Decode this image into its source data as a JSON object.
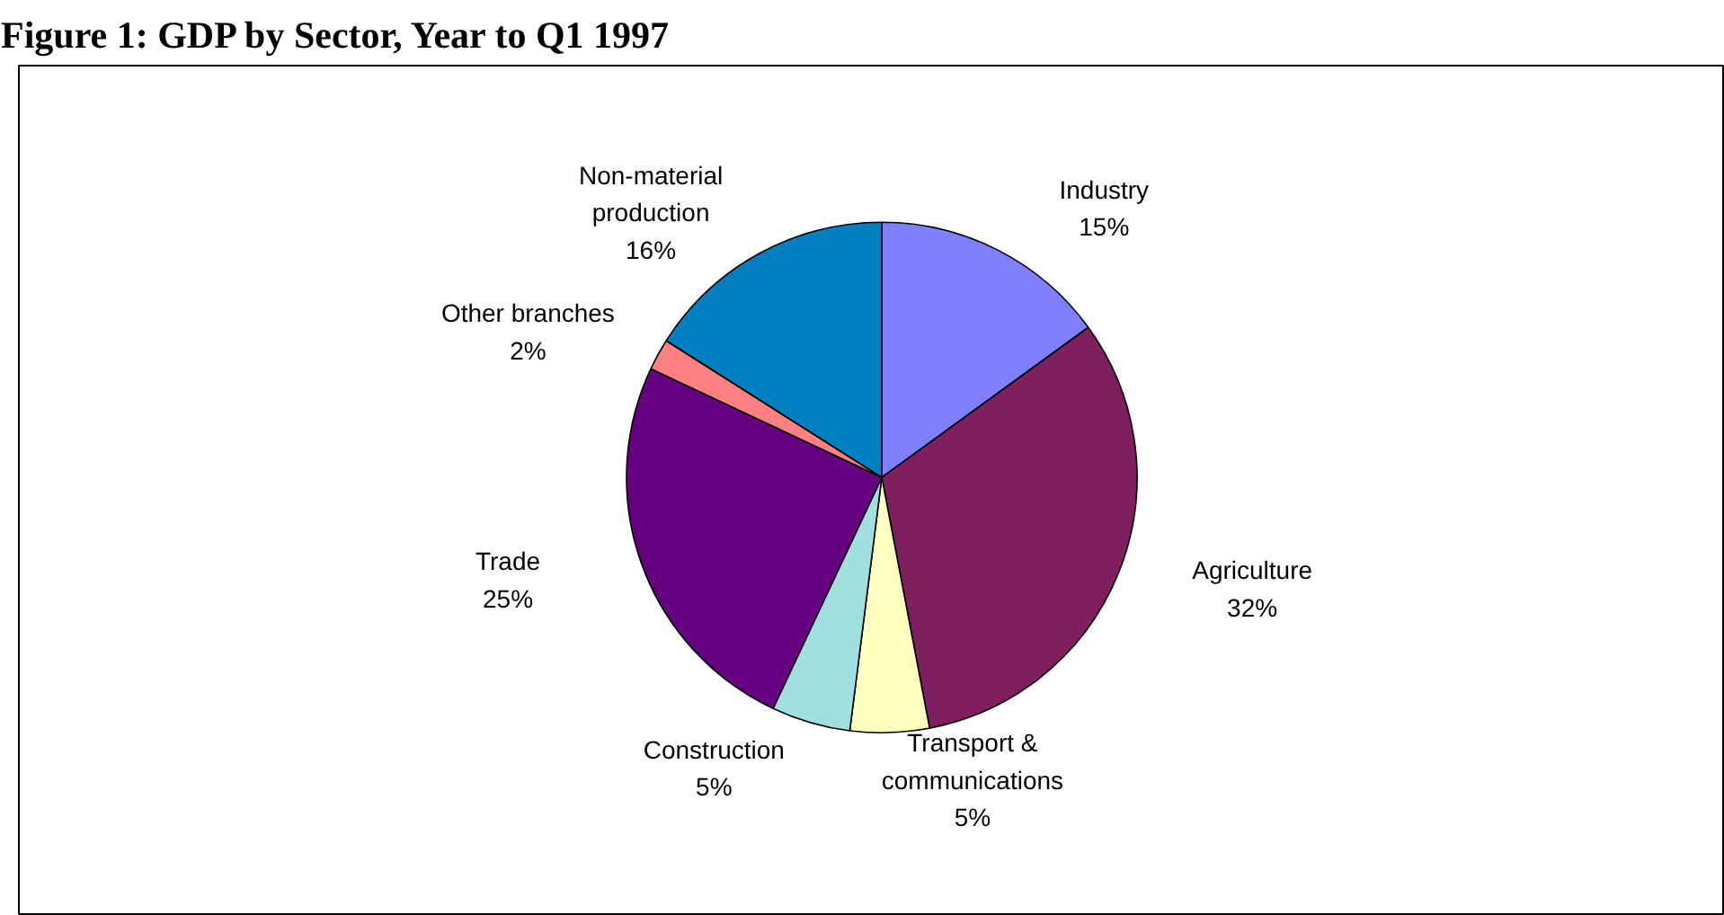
{
  "chart_data": {
    "type": "pie",
    "title": "Figure 1: GDP by Sector, Year to Q1 1997",
    "categories": [
      "Industry",
      "Agriculture",
      "Transport & communications",
      "Construction",
      "Trade",
      "Other branches",
      "Non-material production"
    ],
    "values": [
      15,
      32,
      5,
      5,
      25,
      2,
      16
    ],
    "colors": [
      "#8080ff",
      "#7f1f5f",
      "#ffffc0",
      "#a0e0e0",
      "#660080",
      "#ff8080",
      "#0080c0"
    ],
    "value_labels": [
      "15%",
      "32%",
      "5%",
      "5%",
      "25%",
      "2%",
      "16%"
    ]
  }
}
